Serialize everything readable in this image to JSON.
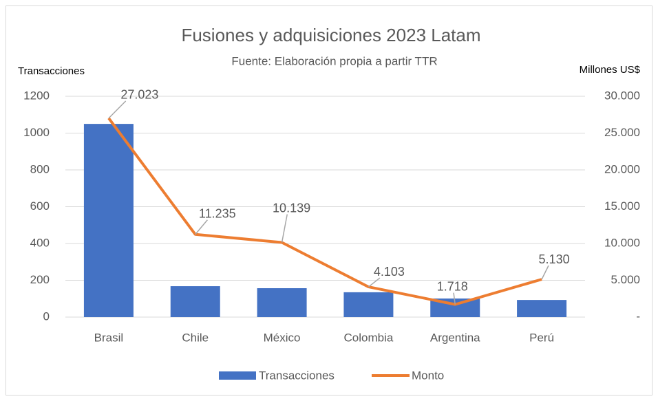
{
  "chart_data": {
    "type": "combo",
    "title": "Fusiones y adquisiciones 2023 Latam",
    "subtitle": "Fuente: Elaboración propia a partir TTR",
    "y_label": "Transacciones",
    "y2_label": "Millones US$",
    "categories": [
      "Brasil",
      "Chile",
      "México",
      "Colombia",
      "Argentina",
      "Perú"
    ],
    "series": [
      {
        "name": "Transacciones",
        "type": "bar",
        "color": "#4472c4",
        "values": [
          1050,
          168,
          157,
          135,
          101,
          93
        ]
      },
      {
        "name": "Monto",
        "type": "line",
        "axis": "y2",
        "color": "#ed7d31",
        "values": [
          27023,
          11235,
          10139,
          4103,
          1718,
          5130
        ],
        "value_labels": [
          "27.023",
          "11.235",
          "10.139",
          "4.103",
          "1.718",
          "5.130"
        ]
      }
    ],
    "ylim": [
      0,
      1200
    ],
    "yticks": [
      0,
      200,
      400,
      600,
      800,
      1000,
      1200
    ],
    "y2lim": [
      0,
      30000
    ],
    "y2ticks": [
      {
        "value": 0,
        "label": "-"
      },
      {
        "value": 5000,
        "label": "5.000"
      },
      {
        "value": 10000,
        "label": "10.000"
      },
      {
        "value": 15000,
        "label": "15.000"
      },
      {
        "value": 20000,
        "label": "20.000"
      },
      {
        "value": 25000,
        "label": "25.000"
      },
      {
        "value": 30000,
        "label": "30.000"
      }
    ],
    "grid": true,
    "legend": "bottom"
  }
}
